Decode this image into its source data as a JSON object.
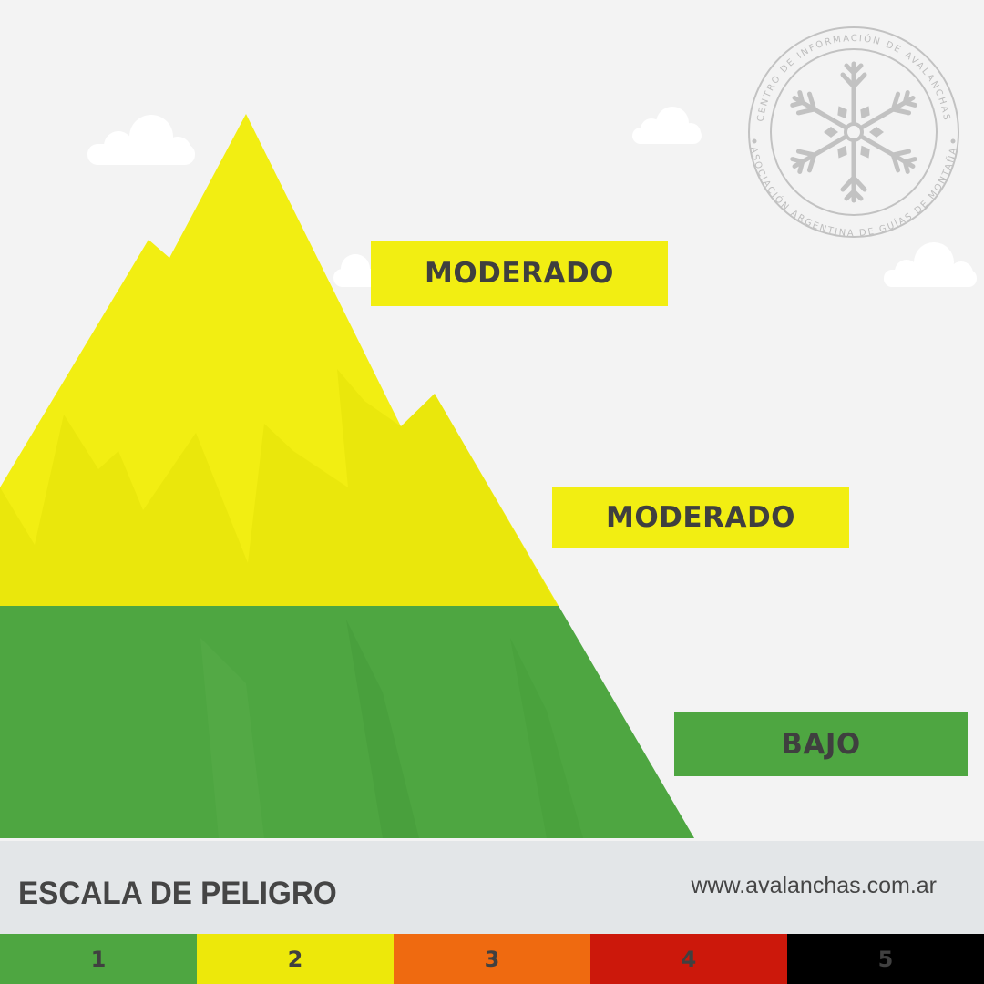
{
  "seal": {
    "top_text": "CENTRO DE INFORMACIÓN DE AVALANCHAS",
    "bottom_text": "ASOCIACIÓN ARGENTINA DE GUÍAS DE MONTAÑA",
    "icon": "snowflake-icon"
  },
  "elevation_bands": [
    {
      "label": "MODERADO",
      "color": "#f2ee12"
    },
    {
      "label": "MODERADO",
      "color": "#f2ee12"
    },
    {
      "label": "BAJO",
      "color": "#4ea641"
    }
  ],
  "footer": {
    "title": "ESCALA DE PELIGRO",
    "url": "www.avalanchas.com.ar"
  },
  "danger_scale": [
    {
      "level": "1",
      "color": "#4ea641"
    },
    {
      "level": "2",
      "color": "#ede80a"
    },
    {
      "level": "3",
      "color": "#ef6a10"
    },
    {
      "level": "4",
      "color": "#cc180b"
    },
    {
      "level": "5",
      "color": "#000000"
    }
  ]
}
